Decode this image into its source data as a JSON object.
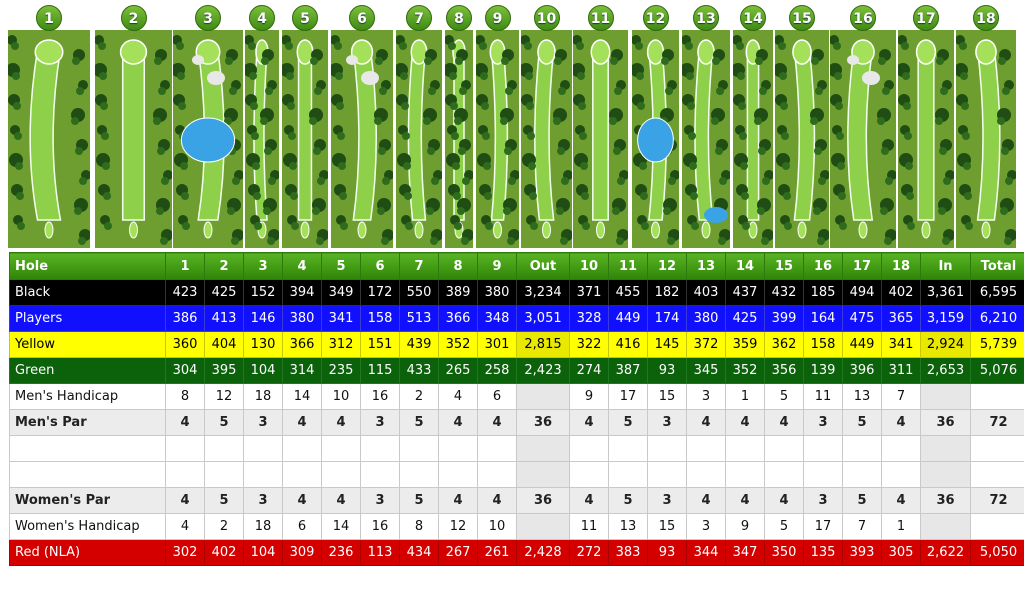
{
  "holes": [
    "1",
    "2",
    "3",
    "4",
    "5",
    "6",
    "7",
    "8",
    "9",
    "10",
    "11",
    "12",
    "13",
    "14",
    "15",
    "16",
    "17",
    "18"
  ],
  "table": {
    "header": [
      "Hole",
      "1",
      "2",
      "3",
      "4",
      "5",
      "6",
      "7",
      "8",
      "9",
      "Out",
      "10",
      "11",
      "12",
      "13",
      "14",
      "15",
      "16",
      "17",
      "18",
      "In",
      "Total"
    ],
    "rows": [
      {
        "key": "black",
        "cells": [
          "Black",
          "423",
          "425",
          "152",
          "394",
          "349",
          "172",
          "550",
          "389",
          "380",
          "3,234",
          "371",
          "455",
          "182",
          "403",
          "437",
          "432",
          "185",
          "494",
          "402",
          "3,361",
          "6,595"
        ]
      },
      {
        "key": "players",
        "cells": [
          "Players",
          "386",
          "413",
          "146",
          "380",
          "341",
          "158",
          "513",
          "366",
          "348",
          "3,051",
          "328",
          "449",
          "174",
          "380",
          "425",
          "399",
          "164",
          "475",
          "365",
          "3,159",
          "6,210"
        ]
      },
      {
        "key": "yellow",
        "cells": [
          "Yellow",
          "360",
          "404",
          "130",
          "366",
          "312",
          "151",
          "439",
          "352",
          "301",
          "2,815",
          "322",
          "416",
          "145",
          "372",
          "359",
          "362",
          "158",
          "449",
          "341",
          "2,924",
          "5,739"
        ]
      },
      {
        "key": "green",
        "cells": [
          "Green",
          "304",
          "395",
          "104",
          "314",
          "235",
          "115",
          "433",
          "265",
          "258",
          "2,423",
          "274",
          "387",
          "93",
          "345",
          "352",
          "356",
          "139",
          "396",
          "311",
          "2,653",
          "5,076"
        ]
      },
      {
        "key": "plain",
        "cells": [
          "Men's Handicap",
          "8",
          "12",
          "18",
          "14",
          "10",
          "16",
          "2",
          "4",
          "6",
          "",
          "9",
          "17",
          "15",
          "3",
          "1",
          "5",
          "11",
          "13",
          "7",
          "",
          ""
        ]
      },
      {
        "key": "par",
        "cells": [
          "Men's Par",
          "4",
          "5",
          "3",
          "4",
          "4",
          "3",
          "5",
          "4",
          "4",
          "36",
          "4",
          "5",
          "3",
          "4",
          "4",
          "4",
          "3",
          "5",
          "4",
          "36",
          "72"
        ]
      },
      {
        "key": "blank",
        "cells": [
          "",
          "",
          "",
          "",
          "",
          "",
          "",
          "",
          "",
          "",
          "",
          "",
          "",
          "",
          "",
          "",
          "",
          "",
          "",
          "",
          "",
          ""
        ]
      },
      {
        "key": "blank",
        "cells": [
          "",
          "",
          "",
          "",
          "",
          "",
          "",
          "",
          "",
          "",
          "",
          "",
          "",
          "",
          "",
          "",
          "",
          "",
          "",
          "",
          "",
          ""
        ]
      },
      {
        "key": "par",
        "cells": [
          "Women's Par",
          "4",
          "5",
          "3",
          "4",
          "4",
          "3",
          "5",
          "4",
          "4",
          "36",
          "4",
          "5",
          "3",
          "4",
          "4",
          "4",
          "3",
          "5",
          "4",
          "36",
          "72"
        ]
      },
      {
        "key": "plain",
        "cells": [
          "Women's Handicap",
          "4",
          "2",
          "18",
          "6",
          "14",
          "16",
          "8",
          "12",
          "10",
          "",
          "11",
          "13",
          "15",
          "3",
          "9",
          "5",
          "17",
          "7",
          "1",
          "",
          ""
        ]
      },
      {
        "key": "red",
        "cells": [
          "Red (NLA)",
          "302",
          "402",
          "104",
          "309",
          "236",
          "113",
          "434",
          "267",
          "261",
          "2,428",
          "272",
          "383",
          "93",
          "344",
          "347",
          "350",
          "135",
          "393",
          "305",
          "2,622",
          "5,050"
        ]
      }
    ]
  },
  "colors": {
    "header_green": "#3f9a12",
    "black": "#000000",
    "players": "#1010ff",
    "yellow": "#ffff00",
    "green": "#0b620b",
    "red": "#d40000"
  }
}
